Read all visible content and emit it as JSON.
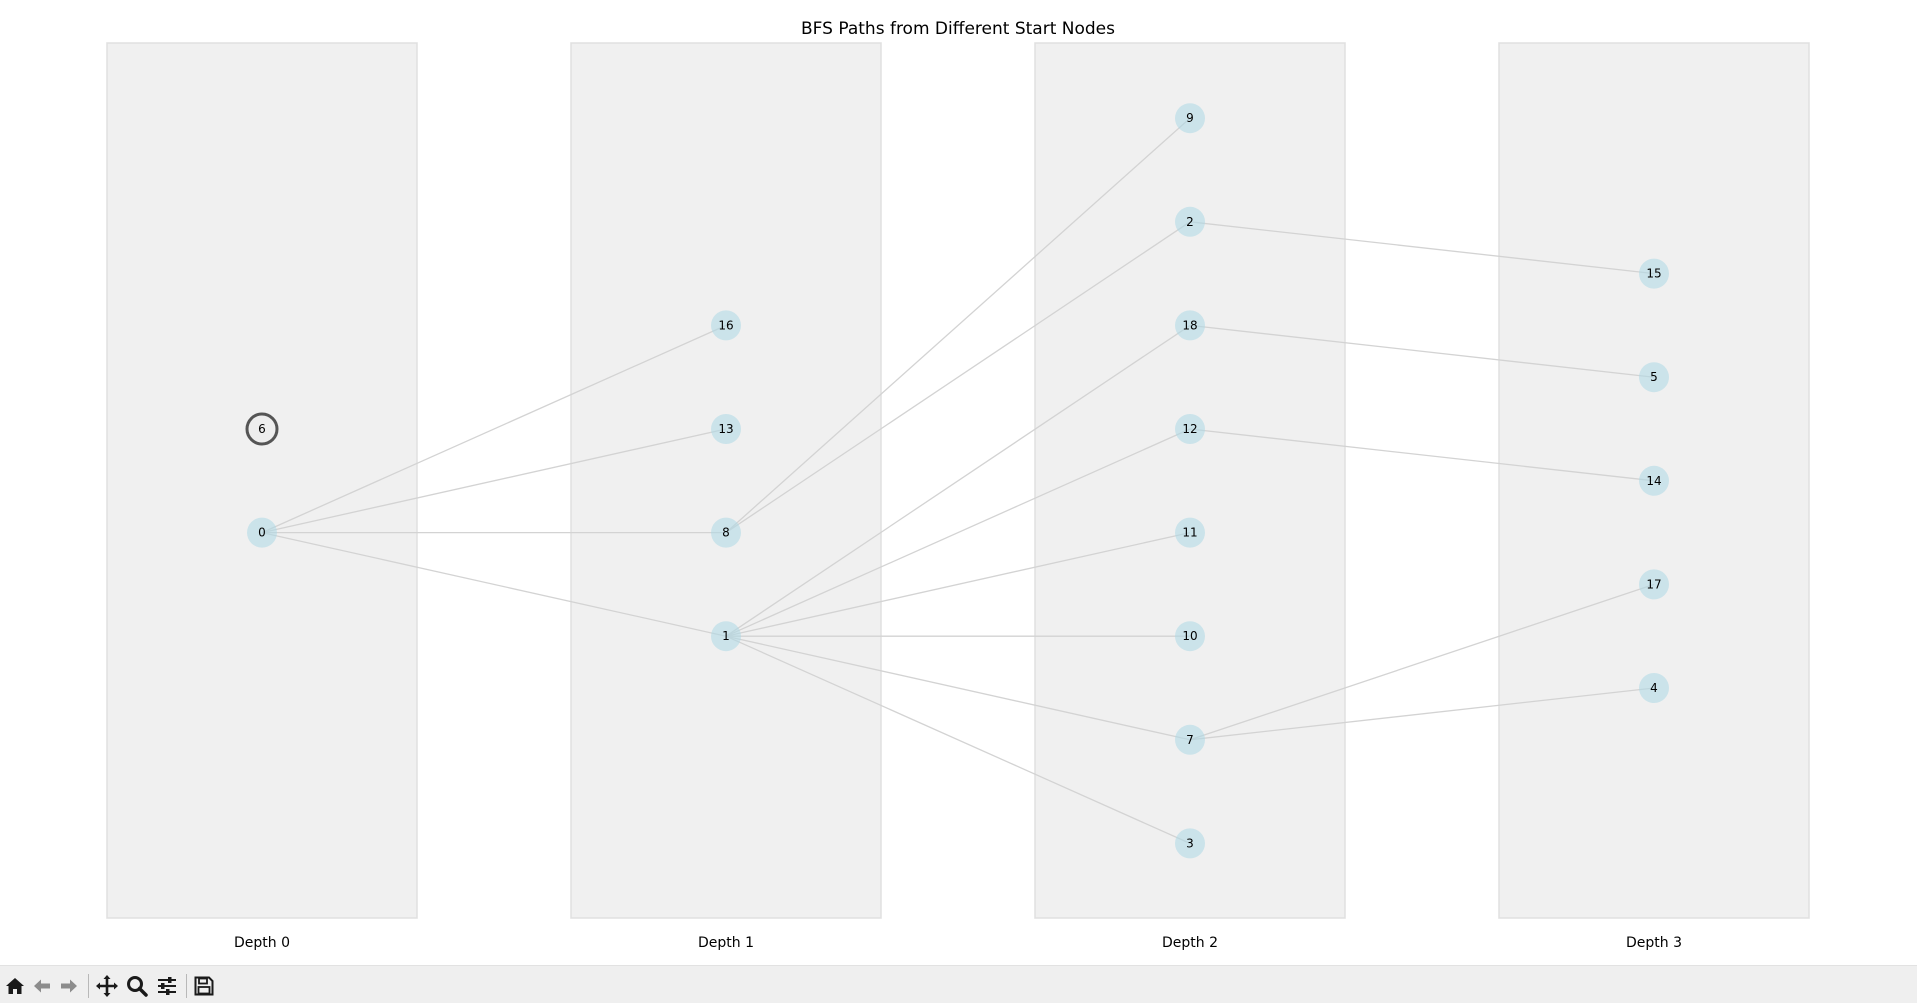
{
  "figure": {
    "title": "BFS Paths from Different Start Nodes"
  },
  "columns": [
    {
      "label": "Depth 0"
    },
    {
      "label": "Depth 1"
    },
    {
      "label": "Depth 2"
    },
    {
      "label": "Depth 3"
    }
  ],
  "nodes": [
    {
      "id": "6",
      "depth": 0,
      "slot": 5,
      "highlighted": true
    },
    {
      "id": "0",
      "depth": 0,
      "slot": 4,
      "highlighted": false
    },
    {
      "id": "16",
      "depth": 1,
      "slot": 6,
      "highlighted": false
    },
    {
      "id": "13",
      "depth": 1,
      "slot": 5,
      "highlighted": false
    },
    {
      "id": "8",
      "depth": 1,
      "slot": 4,
      "highlighted": false
    },
    {
      "id": "1",
      "depth": 1,
      "slot": 3,
      "highlighted": false
    },
    {
      "id": "9",
      "depth": 2,
      "slot": 8,
      "highlighted": false
    },
    {
      "id": "2",
      "depth": 2,
      "slot": 7,
      "highlighted": false
    },
    {
      "id": "18",
      "depth": 2,
      "slot": 6,
      "highlighted": false
    },
    {
      "id": "12",
      "depth": 2,
      "slot": 5,
      "highlighted": false
    },
    {
      "id": "11",
      "depth": 2,
      "slot": 4,
      "highlighted": false
    },
    {
      "id": "10",
      "depth": 2,
      "slot": 3,
      "highlighted": false
    },
    {
      "id": "7",
      "depth": 2,
      "slot": 2,
      "highlighted": false
    },
    {
      "id": "3",
      "depth": 2,
      "slot": 1,
      "highlighted": false
    },
    {
      "id": "15",
      "depth": 3,
      "slot": 6.5,
      "highlighted": false
    },
    {
      "id": "5",
      "depth": 3,
      "slot": 5.5,
      "highlighted": false
    },
    {
      "id": "14",
      "depth": 3,
      "slot": 4.5,
      "highlighted": false
    },
    {
      "id": "17",
      "depth": 3,
      "slot": 3.5,
      "highlighted": false
    },
    {
      "id": "4",
      "depth": 3,
      "slot": 2.5,
      "highlighted": false
    }
  ],
  "edges": [
    [
      "0",
      "16"
    ],
    [
      "0",
      "13"
    ],
    [
      "0",
      "8"
    ],
    [
      "0",
      "1"
    ],
    [
      "8",
      "9"
    ],
    [
      "8",
      "2"
    ],
    [
      "1",
      "18"
    ],
    [
      "1",
      "12"
    ],
    [
      "1",
      "11"
    ],
    [
      "1",
      "10"
    ],
    [
      "1",
      "7"
    ],
    [
      "1",
      "3"
    ],
    [
      "2",
      "15"
    ],
    [
      "18",
      "5"
    ],
    [
      "12",
      "14"
    ],
    [
      "7",
      "17"
    ],
    [
      "7",
      "4"
    ]
  ],
  "colors": {
    "column_fill": "#f0f0f0",
    "column_border": "#e0e0e0",
    "node_fill": "#add8e6",
    "highlight_fill": "#eeeeee",
    "highlight_border": "#555555",
    "edge": "#d3d3d3",
    "toolbar": "#efefef"
  },
  "toolbar": {
    "buttons": [
      {
        "name": "home-button",
        "icon": "home-icon"
      },
      {
        "name": "back-button",
        "icon": "arrow-left-icon"
      },
      {
        "name": "forward-button",
        "icon": "arrow-right-icon"
      },
      {
        "name": "pan-button",
        "icon": "move-icon"
      },
      {
        "name": "zoom-button",
        "icon": "magnifier-icon"
      },
      {
        "name": "configure-subplots-button",
        "icon": "sliders-icon"
      },
      {
        "name": "save-button",
        "icon": "floppy-disk-icon"
      }
    ]
  }
}
